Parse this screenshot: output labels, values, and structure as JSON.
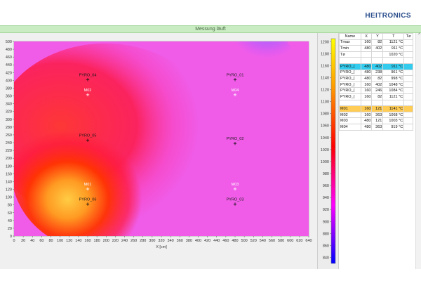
{
  "brand": "HEITRONICS",
  "status": "Messung läuft",
  "plot": {
    "xlabel": "X [cm]",
    "x_ticks": [
      0,
      20,
      40,
      60,
      80,
      100,
      120,
      140,
      160,
      180,
      200,
      220,
      240,
      260,
      280,
      300,
      320,
      340,
      360,
      380,
      400,
      420,
      440,
      460,
      480,
      500,
      520,
      540,
      560,
      580,
      600,
      620,
      640
    ],
    "y_ticks": [
      0,
      20,
      40,
      60,
      80,
      100,
      120,
      140,
      160,
      180,
      200,
      220,
      240,
      260,
      280,
      300,
      320,
      340,
      360,
      380,
      400,
      420,
      440,
      460,
      480,
      500
    ],
    "xlim": [
      0,
      640
    ],
    "ylim": [
      0,
      500
    ],
    "markers": [
      {
        "label": "PYRO_04",
        "x": 160,
        "y": 402,
        "kind": "pyro"
      },
      {
        "label": "PYRO_01",
        "x": 480,
        "y": 402,
        "kind": "pyro"
      },
      {
        "label": "M02",
        "x": 160,
        "y": 363,
        "kind": "m"
      },
      {
        "label": "M04",
        "x": 480,
        "y": 363,
        "kind": "m"
      },
      {
        "label": "PYRO_05",
        "x": 160,
        "y": 246,
        "kind": "pyro"
      },
      {
        "label": "PYRO_02",
        "x": 480,
        "y": 238,
        "kind": "pyro"
      },
      {
        "label": "M01",
        "x": 160,
        "y": 121,
        "kind": "m"
      },
      {
        "label": "M03",
        "x": 480,
        "y": 121,
        "kind": "m"
      },
      {
        "label": "PYRO_06",
        "x": 160,
        "y": 82,
        "kind": "pyro"
      },
      {
        "label": "PYRO_03",
        "x": 480,
        "y": 82,
        "kind": "pyro"
      }
    ]
  },
  "legend": {
    "ticks": [
      1200,
      1180,
      1160,
      1140,
      1120,
      1100,
      1080,
      1060,
      1040,
      1020,
      1000,
      980,
      960,
      940,
      920,
      900,
      880,
      860,
      840
    ],
    "min": 830,
    "max": 1205,
    "colors": {
      "top": "#ffff00",
      "upper": "#ff9900",
      "mid": "#ff0000",
      "lower": "#ff00ff",
      "bottom": "#0000ff"
    }
  },
  "table": {
    "headers": [
      "Name",
      "X",
      "Y",
      "T",
      "Tø"
    ],
    "summary": [
      [
        "Tmax",
        "160",
        "82",
        "1121 °C",
        ""
      ],
      [
        "Tmin",
        "480",
        "402",
        "911 °C",
        ""
      ],
      [
        "Tø",
        "",
        "",
        "1020 °C",
        ""
      ]
    ],
    "pyros": [
      [
        "PYRO_(",
        "480",
        "402",
        "911 °C",
        ""
      ],
      [
        "PYRO_(",
        "480",
        "238",
        "961 °C",
        ""
      ],
      [
        "PYRO_(",
        "480",
        "82",
        "998 °C",
        ""
      ],
      [
        "PYRO_(",
        "160",
        "402",
        "1048 °C",
        ""
      ],
      [
        "PYRO_(",
        "160",
        "246",
        "1084 °C",
        ""
      ],
      [
        "PYRO_(",
        "160",
        "82",
        "1121 °C",
        ""
      ]
    ],
    "measures": [
      [
        "M01",
        "160",
        "121",
        "1141 °C",
        ""
      ],
      [
        "M02",
        "160",
        "363",
        "1068 °C",
        ""
      ],
      [
        "M03",
        "480",
        "121",
        "1003 °C",
        ""
      ],
      [
        "M04",
        "480",
        "363",
        "919 °C",
        ""
      ]
    ],
    "highlight_colors": {
      "pyro": "#33ccee",
      "measure": "#ffcc55"
    }
  }
}
